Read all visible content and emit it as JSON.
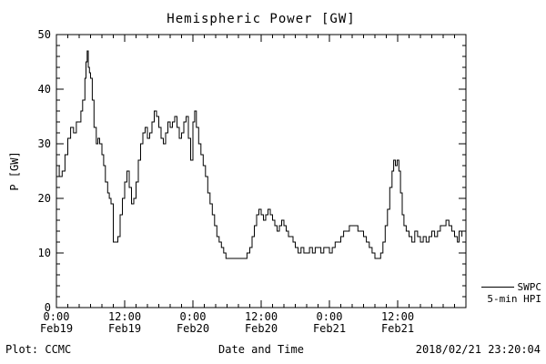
{
  "title": "Hemispheric Power [GW]",
  "ylabel": "P [GW]",
  "xlabel": "Date and Time",
  "footer": {
    "left": "Plot: CCMC",
    "right": "2018/02/21 23:20:04"
  },
  "legend": {
    "line1": "SWPC",
    "line2": "5-min HPI"
  },
  "colors": {
    "line": "#000000",
    "axis": "#000000",
    "background": "#ffffff"
  },
  "chart_data": {
    "type": "line",
    "title": "Hemispheric Power [GW]",
    "xlabel": "Date and Time",
    "ylabel": "P [GW]",
    "x_unit": "hours since 2018-02-19 00:00",
    "xlim": [
      0,
      72
    ],
    "ylim": [
      0,
      50
    ],
    "grid": false,
    "legend_position": "right-outside",
    "yticks": [
      0,
      10,
      20,
      30,
      40,
      50
    ],
    "minor_x_step": 2,
    "minor_y_step": 2,
    "xticks": [
      {
        "pos": 0,
        "line1": "0:00",
        "line2": "Feb19"
      },
      {
        "pos": 12,
        "line1": "12:00",
        "line2": "Feb19"
      },
      {
        "pos": 24,
        "line1": "0:00",
        "line2": "Feb20"
      },
      {
        "pos": 36,
        "line1": "12:00",
        "line2": "Feb20"
      },
      {
        "pos": 48,
        "line1": "0:00",
        "line2": "Feb21"
      },
      {
        "pos": 60,
        "line1": "12:00",
        "line2": "Feb21"
      }
    ],
    "series": [
      {
        "name": "SWPC 5-min HPI",
        "style": "step",
        "points": [
          [
            0,
            26
          ],
          [
            0.5,
            24
          ],
          [
            1,
            25
          ],
          [
            1.5,
            28
          ],
          [
            2,
            31
          ],
          [
            2.5,
            33
          ],
          [
            3,
            32
          ],
          [
            3.5,
            34
          ],
          [
            4,
            34
          ],
          [
            4.3,
            36
          ],
          [
            4.6,
            38
          ],
          [
            5,
            42
          ],
          [
            5.2,
            45
          ],
          [
            5.4,
            47
          ],
          [
            5.6,
            44
          ],
          [
            5.8,
            43
          ],
          [
            6,
            42
          ],
          [
            6.3,
            38
          ],
          [
            6.6,
            33
          ],
          [
            7,
            30
          ],
          [
            7.3,
            31
          ],
          [
            7.6,
            30
          ],
          [
            8,
            28
          ],
          [
            8.3,
            26
          ],
          [
            8.6,
            23
          ],
          [
            9,
            21
          ],
          [
            9.3,
            20
          ],
          [
            9.6,
            19
          ],
          [
            10,
            12
          ],
          [
            10.4,
            12
          ],
          [
            10.8,
            13
          ],
          [
            11.2,
            17
          ],
          [
            11.6,
            20
          ],
          [
            12,
            23
          ],
          [
            12.4,
            25
          ],
          [
            12.8,
            22
          ],
          [
            13.2,
            19
          ],
          [
            13.6,
            20
          ],
          [
            14,
            23
          ],
          [
            14.4,
            27
          ],
          [
            14.8,
            30
          ],
          [
            15.2,
            32
          ],
          [
            15.6,
            33
          ],
          [
            16,
            31
          ],
          [
            16.4,
            32
          ],
          [
            16.8,
            34
          ],
          [
            17.2,
            36
          ],
          [
            17.6,
            35
          ],
          [
            18,
            33
          ],
          [
            18.4,
            31
          ],
          [
            18.8,
            30
          ],
          [
            19.2,
            32
          ],
          [
            19.6,
            34
          ],
          [
            20,
            33
          ],
          [
            20.4,
            34
          ],
          [
            20.8,
            35
          ],
          [
            21.2,
            33
          ],
          [
            21.6,
            31
          ],
          [
            22,
            32
          ],
          [
            22.4,
            34
          ],
          [
            22.8,
            35
          ],
          [
            23.2,
            31
          ],
          [
            23.6,
            27
          ],
          [
            24,
            34
          ],
          [
            24.3,
            36
          ],
          [
            24.6,
            33
          ],
          [
            25,
            30
          ],
          [
            25.4,
            28
          ],
          [
            25.8,
            26
          ],
          [
            26.2,
            24
          ],
          [
            26.6,
            21
          ],
          [
            27,
            19
          ],
          [
            27.4,
            17
          ],
          [
            27.8,
            15
          ],
          [
            28.2,
            13
          ],
          [
            28.6,
            12
          ],
          [
            29,
            11
          ],
          [
            29.4,
            10
          ],
          [
            29.8,
            9
          ],
          [
            30.5,
            9
          ],
          [
            31,
            9
          ],
          [
            31.5,
            9
          ],
          [
            32,
            9
          ],
          [
            32.5,
            9
          ],
          [
            33,
            9
          ],
          [
            33.5,
            10
          ],
          [
            34,
            11
          ],
          [
            34.4,
            13
          ],
          [
            34.8,
            15
          ],
          [
            35.2,
            17
          ],
          [
            35.6,
            18
          ],
          [
            36,
            17
          ],
          [
            36.4,
            16
          ],
          [
            36.8,
            17
          ],
          [
            37.2,
            18
          ],
          [
            37.6,
            17
          ],
          [
            38,
            16
          ],
          [
            38.4,
            15
          ],
          [
            38.8,
            14
          ],
          [
            39.2,
            15
          ],
          [
            39.6,
            16
          ],
          [
            40,
            15
          ],
          [
            40.4,
            14
          ],
          [
            40.8,
            13
          ],
          [
            41.2,
            13
          ],
          [
            41.6,
            12
          ],
          [
            42,
            11
          ],
          [
            42.5,
            10
          ],
          [
            43,
            11
          ],
          [
            43.5,
            10
          ],
          [
            44,
            10
          ],
          [
            44.5,
            11
          ],
          [
            45,
            10
          ],
          [
            45.5,
            11
          ],
          [
            46,
            11
          ],
          [
            46.5,
            10
          ],
          [
            47,
            11
          ],
          [
            47.5,
            11
          ],
          [
            48,
            10
          ],
          [
            48.5,
            11
          ],
          [
            49,
            12
          ],
          [
            49.5,
            12
          ],
          [
            50,
            13
          ],
          [
            50.5,
            14
          ],
          [
            51,
            14
          ],
          [
            51.5,
            15
          ],
          [
            52,
            15
          ],
          [
            52.5,
            15
          ],
          [
            53,
            14
          ],
          [
            53.5,
            14
          ],
          [
            54,
            13
          ],
          [
            54.5,
            12
          ],
          [
            55,
            11
          ],
          [
            55.5,
            10
          ],
          [
            56,
            9
          ],
          [
            56.5,
            9
          ],
          [
            57,
            10
          ],
          [
            57.4,
            12
          ],
          [
            57.8,
            15
          ],
          [
            58.2,
            18
          ],
          [
            58.6,
            22
          ],
          [
            59,
            25
          ],
          [
            59.3,
            27
          ],
          [
            59.6,
            26
          ],
          [
            59.9,
            27
          ],
          [
            60.2,
            25
          ],
          [
            60.5,
            21
          ],
          [
            60.8,
            17
          ],
          [
            61.1,
            15
          ],
          [
            61.5,
            14
          ],
          [
            62,
            13
          ],
          [
            62.5,
            12
          ],
          [
            63,
            14
          ],
          [
            63.5,
            13
          ],
          [
            64,
            12
          ],
          [
            64.5,
            13
          ],
          [
            65,
            12
          ],
          [
            65.5,
            13
          ],
          [
            66,
            14
          ],
          [
            66.5,
            13
          ],
          [
            67,
            14
          ],
          [
            67.5,
            15
          ],
          [
            68,
            15
          ],
          [
            68.5,
            16
          ],
          [
            69,
            15
          ],
          [
            69.5,
            14
          ],
          [
            70,
            13
          ],
          [
            70.5,
            12
          ],
          [
            70.8,
            14
          ],
          [
            71.1,
            14
          ],
          [
            71.3,
            13
          ]
        ]
      }
    ]
  }
}
